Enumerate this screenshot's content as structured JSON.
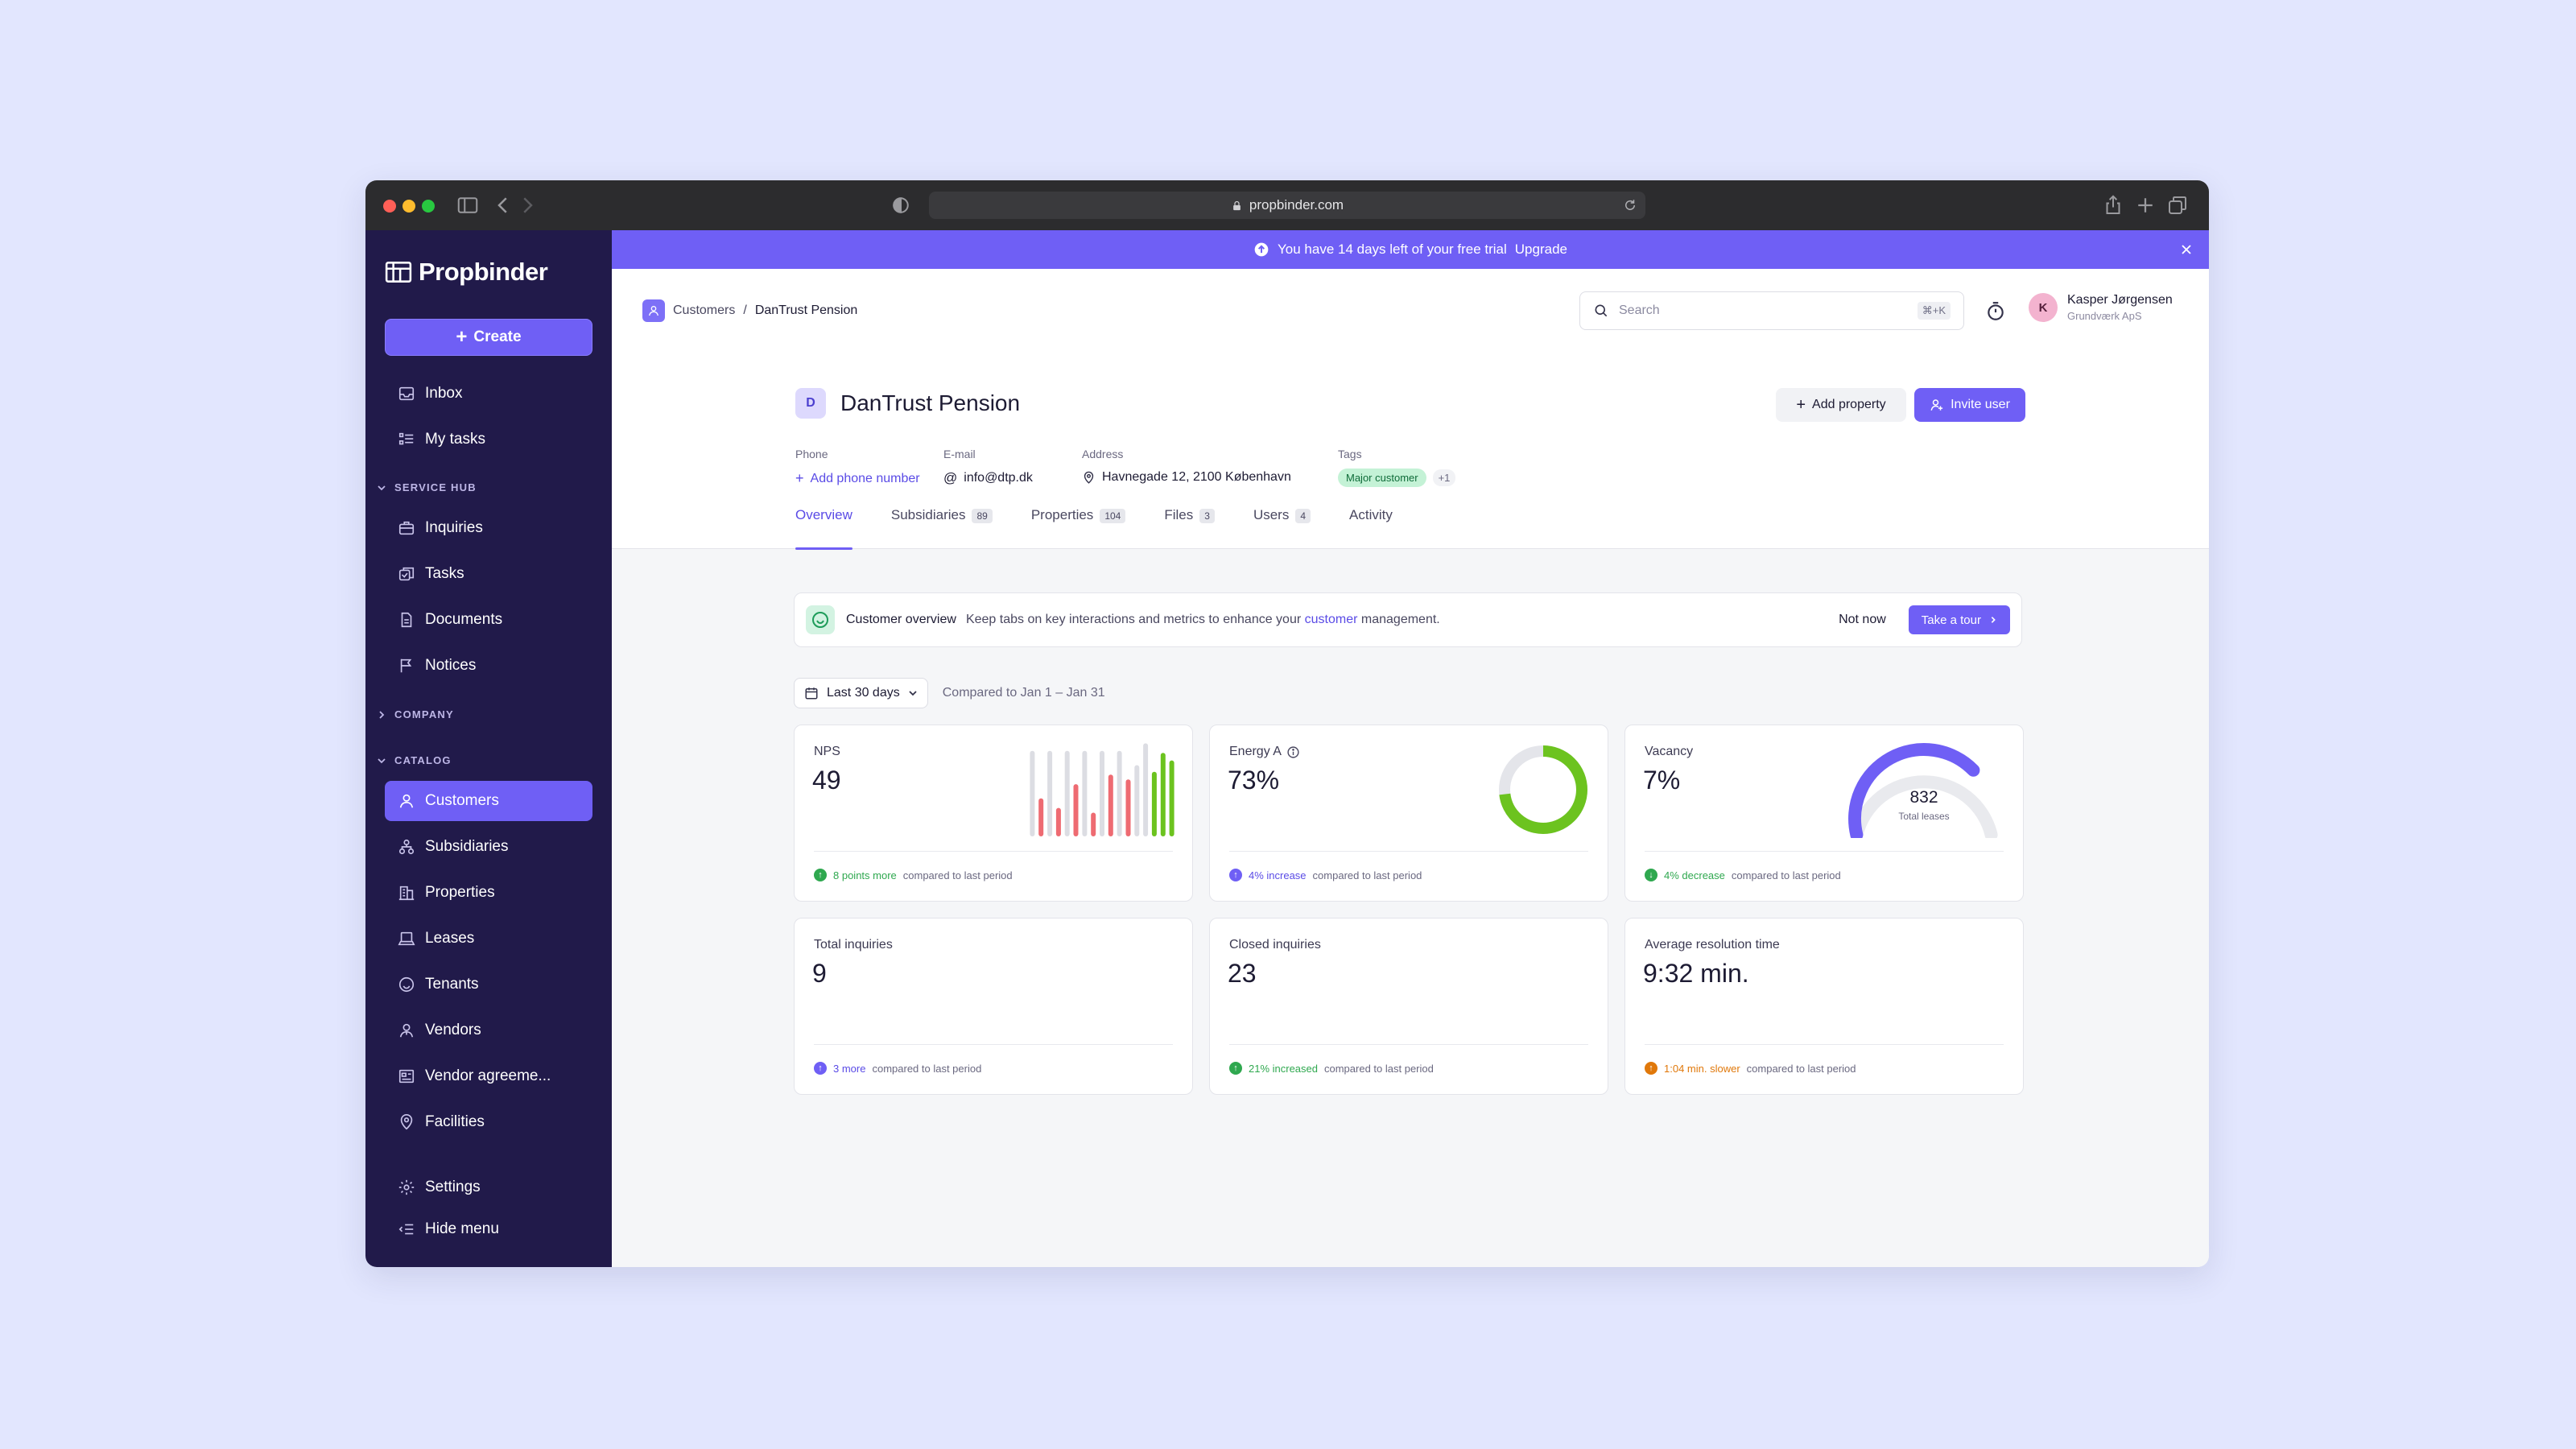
{
  "browser": {
    "url": "propbinder.com"
  },
  "app": {
    "name": "Propbinder"
  },
  "sidebar": {
    "create_label": "Create",
    "top_items": [
      {
        "label": "Inbox",
        "icon": "inbox-icon"
      },
      {
        "label": "My tasks",
        "icon": "tasks-list-icon"
      }
    ],
    "sections": [
      {
        "label": "SERVICE HUB",
        "expanded": true,
        "items": [
          {
            "label": "Inquiries",
            "icon": "briefcase-icon"
          },
          {
            "label": "Tasks",
            "icon": "tasks-icon"
          },
          {
            "label": "Documents",
            "icon": "document-icon"
          },
          {
            "label": "Notices",
            "icon": "flag-icon"
          }
        ]
      },
      {
        "label": "COMPANY",
        "expanded": false,
        "items": []
      },
      {
        "label": "CATALOG",
        "expanded": true,
        "items": [
          {
            "label": "Customers",
            "icon": "person-icon",
            "active": true
          },
          {
            "label": "Subsidiaries",
            "icon": "hierarchy-icon"
          },
          {
            "label": "Properties",
            "icon": "building-icon"
          },
          {
            "label": "Leases",
            "icon": "laptop-icon"
          },
          {
            "label": "Tenants",
            "icon": "smile-icon"
          },
          {
            "label": "Vendors",
            "icon": "vendor-icon"
          },
          {
            "label": "Vendor agreeme...",
            "icon": "agreement-icon"
          },
          {
            "label": "Facilities",
            "icon": "location-pin-icon"
          }
        ]
      }
    ],
    "bottom_items": [
      {
        "label": "Settings",
        "icon": "gear-icon"
      },
      {
        "label": "Hide menu",
        "icon": "collapse-menu-icon"
      }
    ]
  },
  "banner": {
    "text": "You have 14 days left of your free trial",
    "link": "Upgrade"
  },
  "breadcrumb": {
    "parent": "Customers",
    "separator": "/",
    "current": "DanTrust Pension"
  },
  "search": {
    "placeholder": "Search",
    "shortcut": "⌘+K"
  },
  "user": {
    "initial": "K",
    "name": "Kasper Jørgensen",
    "org": "Grundværk ApS"
  },
  "customer": {
    "initial": "D",
    "name": "DanTrust Pension",
    "add_property": "Add property",
    "invite_user": "Invite user",
    "phone": {
      "label": "Phone",
      "value": "Add phone number"
    },
    "email": {
      "label": "E-mail",
      "value": "info@dtp.dk"
    },
    "address": {
      "label": "Address",
      "value": "Havnegade 12, 2100 København"
    },
    "tags": {
      "label": "Tags",
      "items": [
        "Major customer"
      ],
      "more": "+1"
    }
  },
  "tabs": [
    {
      "label": "Overview",
      "count": "",
      "active": true
    },
    {
      "label": "Subsidiaries",
      "count": "89"
    },
    {
      "label": "Properties",
      "count": "104"
    },
    {
      "label": "Files",
      "count": "3"
    },
    {
      "label": "Users",
      "count": "4"
    },
    {
      "label": "Activity",
      "count": ""
    }
  ],
  "tour": {
    "title": "Customer overview",
    "text_before": "Keep tabs on key interactions and metrics to enhance your",
    "highlight": "customer",
    "text_after": "management.",
    "not_now": "Not now",
    "take": "Take a tour"
  },
  "filter": {
    "range": "Last 30 days",
    "compare": "Compared to Jan 1 – Jan 31"
  },
  "cards": {
    "nps": {
      "title": "NPS",
      "value": "49",
      "delta": "8 points more",
      "suffix": "compared to last period",
      "bars": [
        {
          "value": 0.9,
          "color": "gray"
        },
        {
          "value": 0.4,
          "color": "red"
        },
        {
          "value": 0.9,
          "color": "gray"
        },
        {
          "value": 0.3,
          "color": "red"
        },
        {
          "value": 0.9,
          "color": "gray"
        },
        {
          "value": 0.55,
          "color": "red"
        },
        {
          "value": 0.9,
          "color": "gray"
        },
        {
          "value": 0.25,
          "color": "red"
        },
        {
          "value": 0.9,
          "color": "gray"
        },
        {
          "value": 0.65,
          "color": "red"
        },
        {
          "value": 0.9,
          "color": "gray"
        },
        {
          "value": 0.6,
          "color": "red"
        },
        {
          "value": 0.75,
          "color": "gray"
        },
        {
          "value": 0.98,
          "color": "gray"
        },
        {
          "value": 0.68,
          "color": "green"
        },
        {
          "value": 0.88,
          "color": "green"
        },
        {
          "value": 0.8,
          "color": "green"
        }
      ]
    },
    "energy": {
      "title": "Energy A",
      "value": "73%",
      "percent": 73,
      "delta": "4% increase",
      "suffix": "compared to last period"
    },
    "vacancy": {
      "title": "Vacancy",
      "value": "7%",
      "gauge_fraction": 0.72,
      "gauge_value": "832",
      "gauge_label": "Total leases",
      "delta": "4% decrease",
      "suffix": "compared to last period"
    },
    "total_inquiries": {
      "title": "Total inquiries",
      "value": "9",
      "delta": "3 more",
      "suffix": "compared to last period"
    },
    "closed_inquiries": {
      "title": "Closed inquiries",
      "value": "23",
      "delta": "21% increased",
      "suffix": "compared to last period"
    },
    "resolution": {
      "title": "Average resolution time",
      "value": "9:32 min.",
      "delta": "1:04 min. slower",
      "suffix": "compared to last period"
    }
  },
  "colors": {
    "accent": "#6f5ff5",
    "sidebar": "#211a4a",
    "green": "#6cc31f",
    "red": "#ee6b72",
    "gray": "#dcdde3",
    "orange": "#e0780a"
  }
}
